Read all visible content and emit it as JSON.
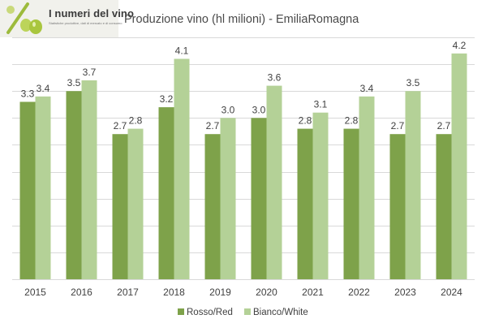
{
  "logo": {
    "title": "I numeri del vino",
    "subtitle": "Statistiche produttive, dati di mercato e di consumo"
  },
  "chart_data": {
    "type": "bar",
    "title": "Produzione vino (hl milioni) - EmiliaRomagna",
    "categories": [
      "2015",
      "2016",
      "2017",
      "2018",
      "2019",
      "2020",
      "2021",
      "2022",
      "2023",
      "2024"
    ],
    "series": [
      {
        "name": "Rosso/Red",
        "color": "#7ea24a",
        "values": [
          3.3,
          3.5,
          2.7,
          3.2,
          2.7,
          3.0,
          2.8,
          2.8,
          2.7,
          2.7
        ]
      },
      {
        "name": "Bianco/White",
        "color": "#b4d197",
        "values": [
          3.4,
          3.7,
          2.8,
          4.1,
          3.0,
          3.6,
          3.1,
          3.4,
          3.5,
          4.2
        ]
      }
    ],
    "ylim": [
      0,
      4.5
    ],
    "gridlines": true,
    "y_axis_labels_shown": false,
    "legend_position": "bottom",
    "xlabel": "",
    "ylabel": ""
  }
}
